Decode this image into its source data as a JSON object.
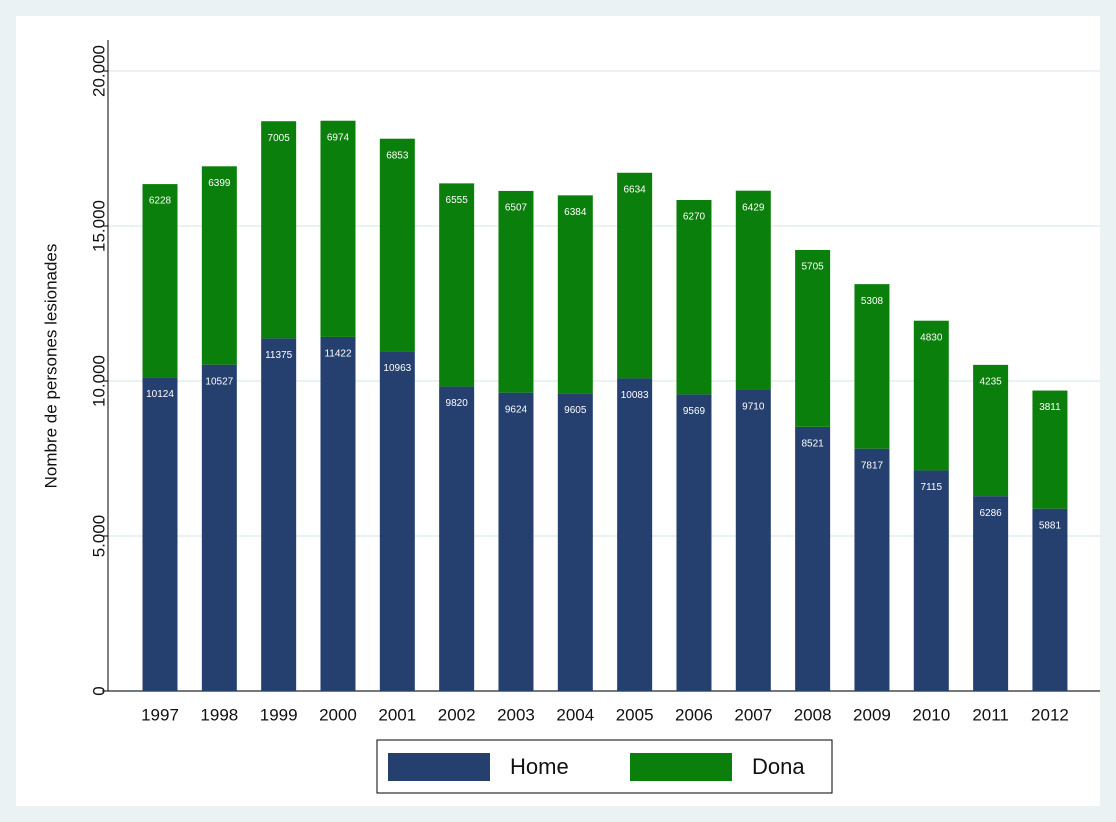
{
  "chart_data": {
    "type": "stacked_bar",
    "y_axis_label": "Nombre de persones lesionades",
    "categories": [
      "1997",
      "1998",
      "1999",
      "2000",
      "2001",
      "2002",
      "2003",
      "2004",
      "2005",
      "2006",
      "2007",
      "2008",
      "2009",
      "2010",
      "2011",
      "2012"
    ],
    "series": [
      {
        "name": "Home",
        "color": "#253f6e",
        "values": [
          10124,
          10527,
          11375,
          11422,
          10963,
          9820,
          9624,
          9605,
          10083,
          9569,
          9710,
          8521,
          7817,
          7115,
          6286,
          5881
        ]
      },
      {
        "name": "Dona",
        "color": "#0b7f0b",
        "values": [
          6228,
          6399,
          7005,
          6974,
          6853,
          6555,
          6507,
          6384,
          6634,
          6270,
          6429,
          5705,
          5308,
          4830,
          4235,
          3811
        ]
      }
    ],
    "ylim": [
      0,
      21000
    ],
    "yticks": [
      0,
      {
        "value": 5000,
        "label": "5.000"
      },
      {
        "value": 10000,
        "label": "10.000"
      },
      {
        "value": 15000,
        "label": "15.000"
      },
      {
        "value": 20000,
        "label": "20.000"
      }
    ],
    "grid": true,
    "legend": "bottom"
  }
}
